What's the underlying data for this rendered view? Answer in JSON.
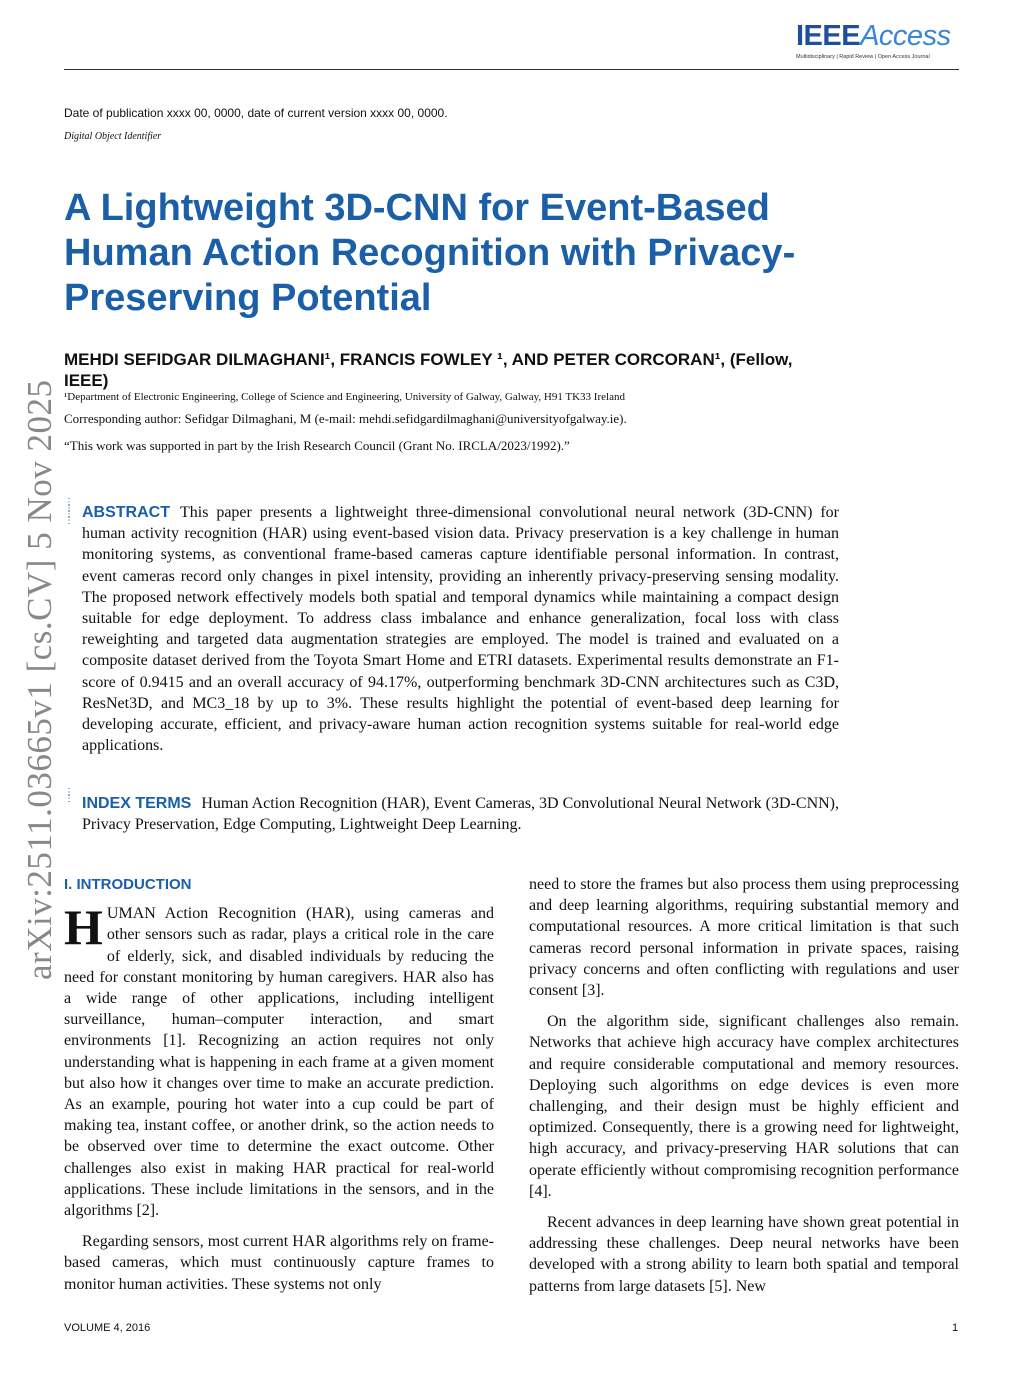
{
  "header": {
    "logo_ieee": "IEEE",
    "logo_access": "Access",
    "logo_tagline": "Multidisciplinary | Rapid Review | Open Access Journal",
    "publication_date": "Date of publication xxxx 00, 0000, date of current version xxxx 00, 0000.",
    "doi": "Digital Object Identifier"
  },
  "arxiv_stamp": "arXiv:2511.03665v1  [cs.CV]  5 Nov 2025",
  "paper": {
    "title": "A Lightweight 3D-CNN for Event-Based Human Action Recognition with Privacy-Preserving Potential",
    "authors": "MEHDI SEFIDGAR DILMAGHANI¹, FRANCIS FOWLEY ¹, AND PETER CORCORAN¹, (Fellow, IEEE)",
    "affiliation": "¹Department of Electronic Engineering, College of Science and Engineering, University of Galway, Galway, H91 TK33 Ireland",
    "corresponding": "Corresponding author: Sefidgar Dilmaghani, M (e-mail: mehdi.sefidgardilmaghani@universityofgalway.ie).",
    "funding": "“This work was supported in part by the Irish Research Council (Grant No. IRCLA/2023/1992).”",
    "abstract_label": "ABSTRACT",
    "abstract": "This paper presents a lightweight three-dimensional convolutional neural network (3D-CNN) for human activity recognition (HAR) using event-based vision data. Privacy preservation is a key challenge in human monitoring systems, as conventional frame-based cameras capture identifiable personal information. In contrast, event cameras record only changes in pixel intensity, providing an inherently privacy-preserving sensing modality. The proposed network effectively models both spatial and temporal dynamics while maintaining a compact design suitable for edge deployment. To address class imbalance and enhance generalization, focal loss with class reweighting and targeted data augmentation strategies are employed. The model is trained and evaluated on a composite dataset derived from the Toyota Smart Home and ETRI datasets. Experimental results demonstrate an F1-score of 0.9415 and an overall accuracy of 94.17%, outperforming benchmark 3D-CNN architectures such as C3D, ResNet3D, and MC3_18 by up to 3%. These results highlight the potential of event-based deep learning for developing accurate, efficient, and privacy-aware human action recognition systems suitable for real-world edge applications.",
    "index_label": "INDEX TERMS",
    "index_terms": "Human Action Recognition (HAR), Event Cameras, 3D Convolutional Neural Network (3D-CNN), Privacy Preservation, Edge Computing, Lightweight Deep Learning.",
    "section_heading": "I. INTRODUCTION",
    "dropcap": "H",
    "para1": "UMAN Action Recognition (HAR), using cameras and other sensors such as radar, plays a critical role in the care of elderly, sick, and disabled individuals by reducing the need for constant monitoring by human caregivers. HAR also has a wide range of other applications, including intelligent surveillance, human–computer interaction, and smart environments [1]. Recognizing an action requires not only understanding what is happening in each frame at a given moment but also how it changes over time to make an accurate prediction. As an example, pouring hot water into a cup could be part of making tea, instant coffee, or another drink, so the action needs to be observed over time to determine the exact outcome. Other challenges also exist in making HAR practical for real-world applications. These include limitations in the sensors, and in the algorithms [2].",
    "para2": "Regarding sensors, most current HAR algorithms rely on frame-based cameras, which must continuously capture frames to monitor human activities. These systems not only",
    "para3": "need to store the frames but also process them using preprocessing and deep learning algorithms, requiring substantial memory and computational resources. A more critical limitation is that such cameras record personal information in private spaces, raising privacy concerns and often conflicting with regulations and user consent [3].",
    "para4": "On the algorithm side, significant challenges also remain. Networks that achieve high accuracy have complex architectures and require considerable computational and memory resources. Deploying such algorithms on edge devices is even more challenging, and their design must be highly efficient and optimized. Consequently, there is a growing need for lightweight, high accuracy, and privacy-preserving HAR solutions that can operate efficiently without compromising recognition performance [4].",
    "para5": "Recent advances in deep learning have shown great potential in addressing these challenges. Deep neural networks have been developed with a strong ability to learn both spatial and temporal patterns from large datasets [5]. New"
  },
  "footer": {
    "volume": "VOLUME 4, 2016",
    "page": "1"
  },
  "colors": {
    "accent": "#1a5fa8",
    "logo_dark": "#1f4e9c",
    "logo_light": "#3a86d6",
    "stamp": "#888888"
  }
}
